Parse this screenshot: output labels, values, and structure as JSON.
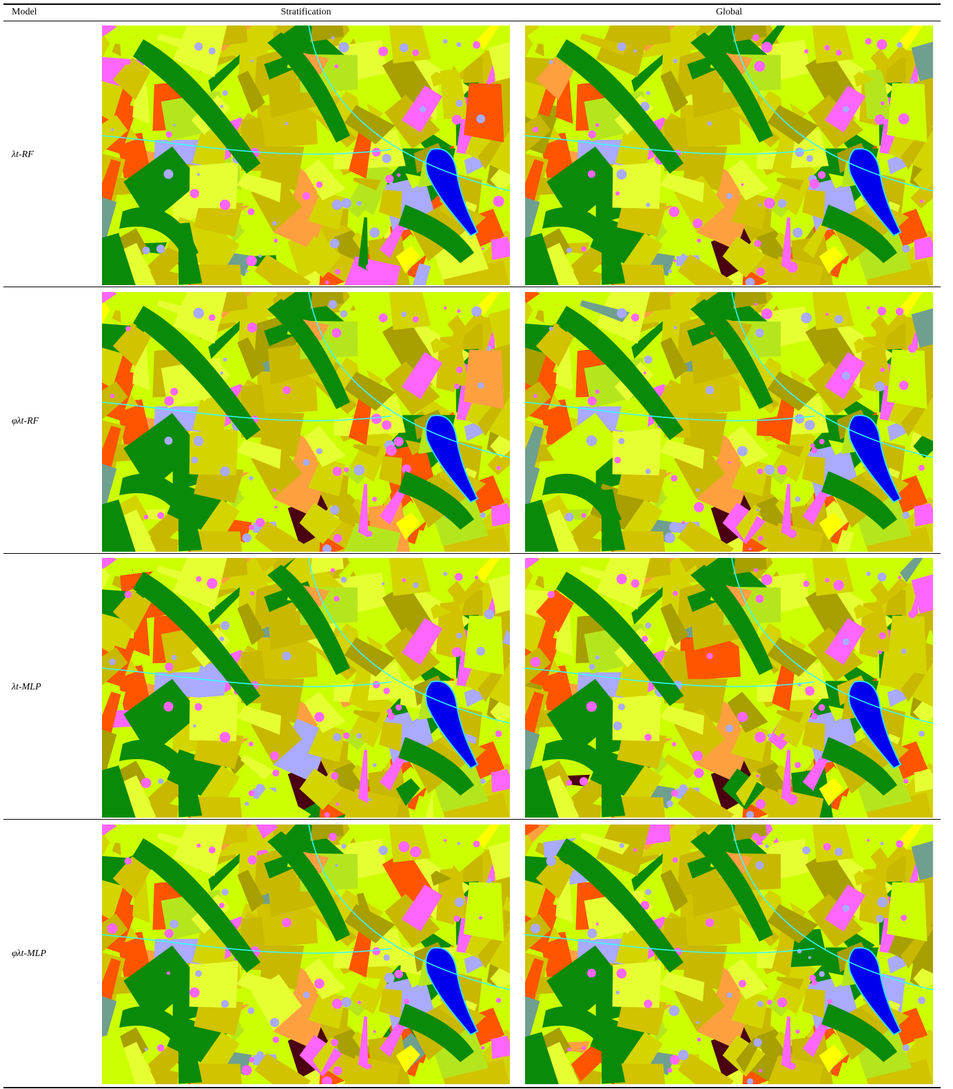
{
  "header": {
    "columns": [
      "Model",
      "Stratification",
      "Global"
    ]
  },
  "rows": [
    {
      "model": "λt-RF"
    },
    {
      "model": "φλt-RF"
    },
    {
      "model": "λt-MLP"
    },
    {
      "model": "φλt-MLP"
    }
  ]
}
